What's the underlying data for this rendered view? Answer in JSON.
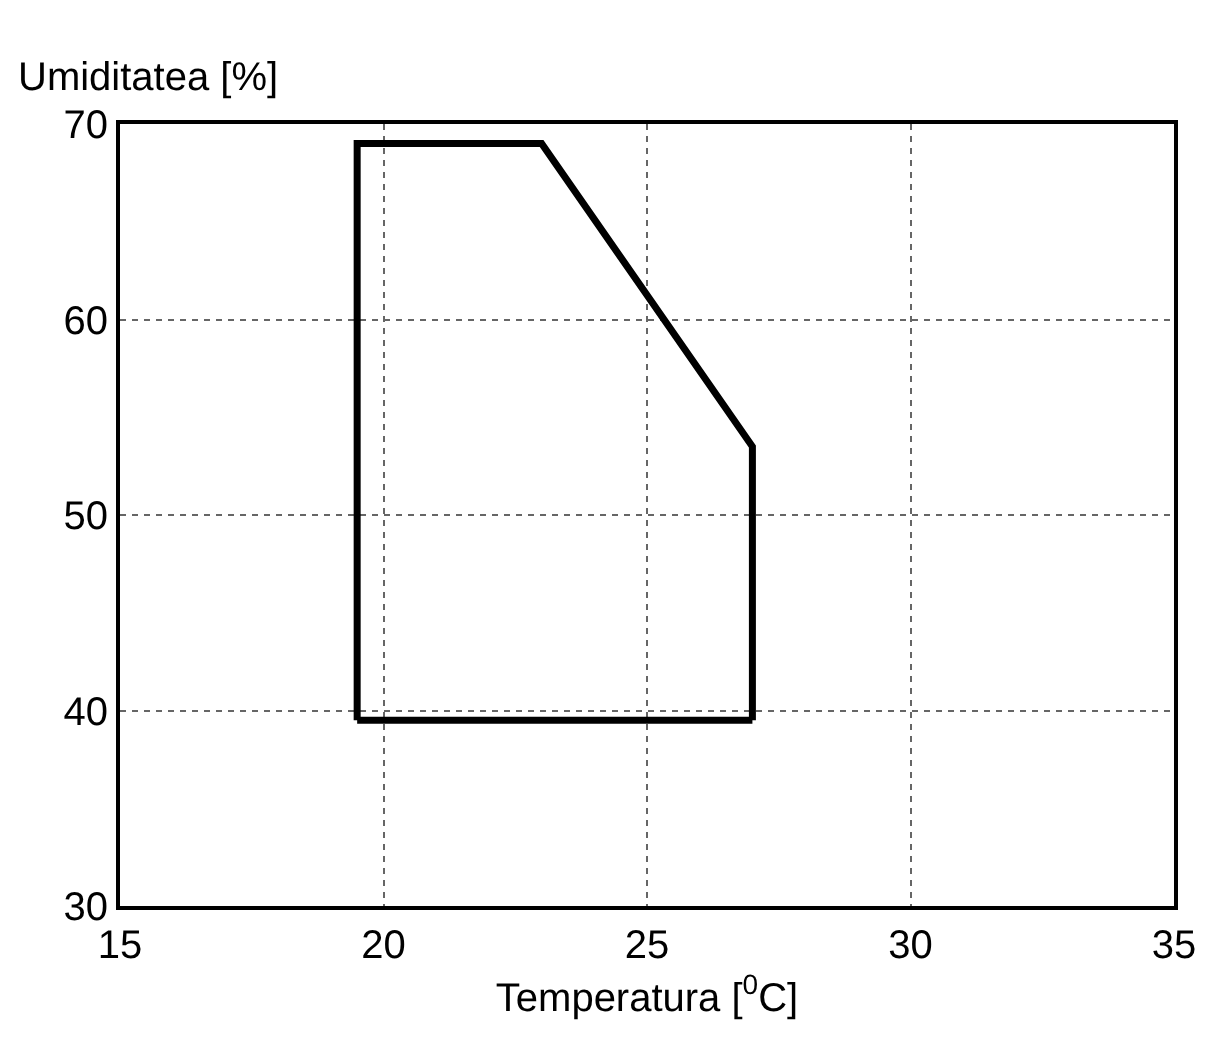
{
  "chart_data": {
    "type": "line",
    "xlabel": "Temperatura [$^{0}$C]",
    "ylabel": "Umiditatea [%]",
    "x": [
      19.5,
      19.5,
      23,
      27,
      27
    ],
    "series": [
      {
        "color": "#000000",
        "values": [
          39.5,
          69,
          69,
          53.5,
          39.5
        ]
      },
      {
        "color": "#000000",
        "x": [
          19.5,
          27
        ],
        "values": [
          39.5,
          39.5
        ]
      }
    ],
    "xlim": [
      15,
      35
    ],
    "xticks": [
      15,
      20,
      25,
      30,
      35
    ],
    "ylim": [
      30,
      70
    ],
    "yticks": [
      30,
      40,
      50,
      60,
      70
    ],
    "grid": true,
    "legend": false,
    "marker": "none",
    "line_style": "solid"
  }
}
